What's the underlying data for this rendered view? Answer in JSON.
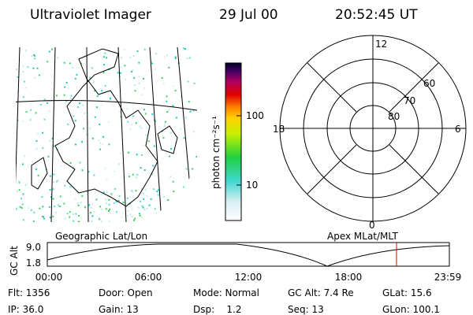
{
  "header": {
    "instrument": "Ultraviolet Imager",
    "date": "29 Jul 00",
    "time": "20:52:45 UT"
  },
  "colorbar": {
    "label": "photon cm⁻²s⁻¹",
    "ticks": [
      "100",
      "10"
    ]
  },
  "polar": {
    "mlt_labels": [
      "12",
      "18",
      "6",
      "0"
    ],
    "lat_labels": [
      "60",
      "70",
      "80"
    ]
  },
  "orbit_plot": {
    "y_label": "GC Alt",
    "y_ticks": [
      "9.0",
      "1.8"
    ],
    "x_ticks": [
      "00:00",
      "06:00",
      "12:00",
      "18:00",
      "23:59"
    ],
    "left_label": "Geographic Lat/Lon",
    "right_label": "Apex MLat/MLT"
  },
  "status": {
    "rows": [
      [
        "Flt: 1356",
        "Door: Open",
        "Mode: Normal",
        "GC Alt: 7.4 Re",
        "GLat: 15.6"
      ],
      [
        "IP: 36.0",
        "Gain: 13",
        "Dsp:    1.2",
        "Seq: 13",
        "GLon: 100.1"
      ]
    ]
  }
}
